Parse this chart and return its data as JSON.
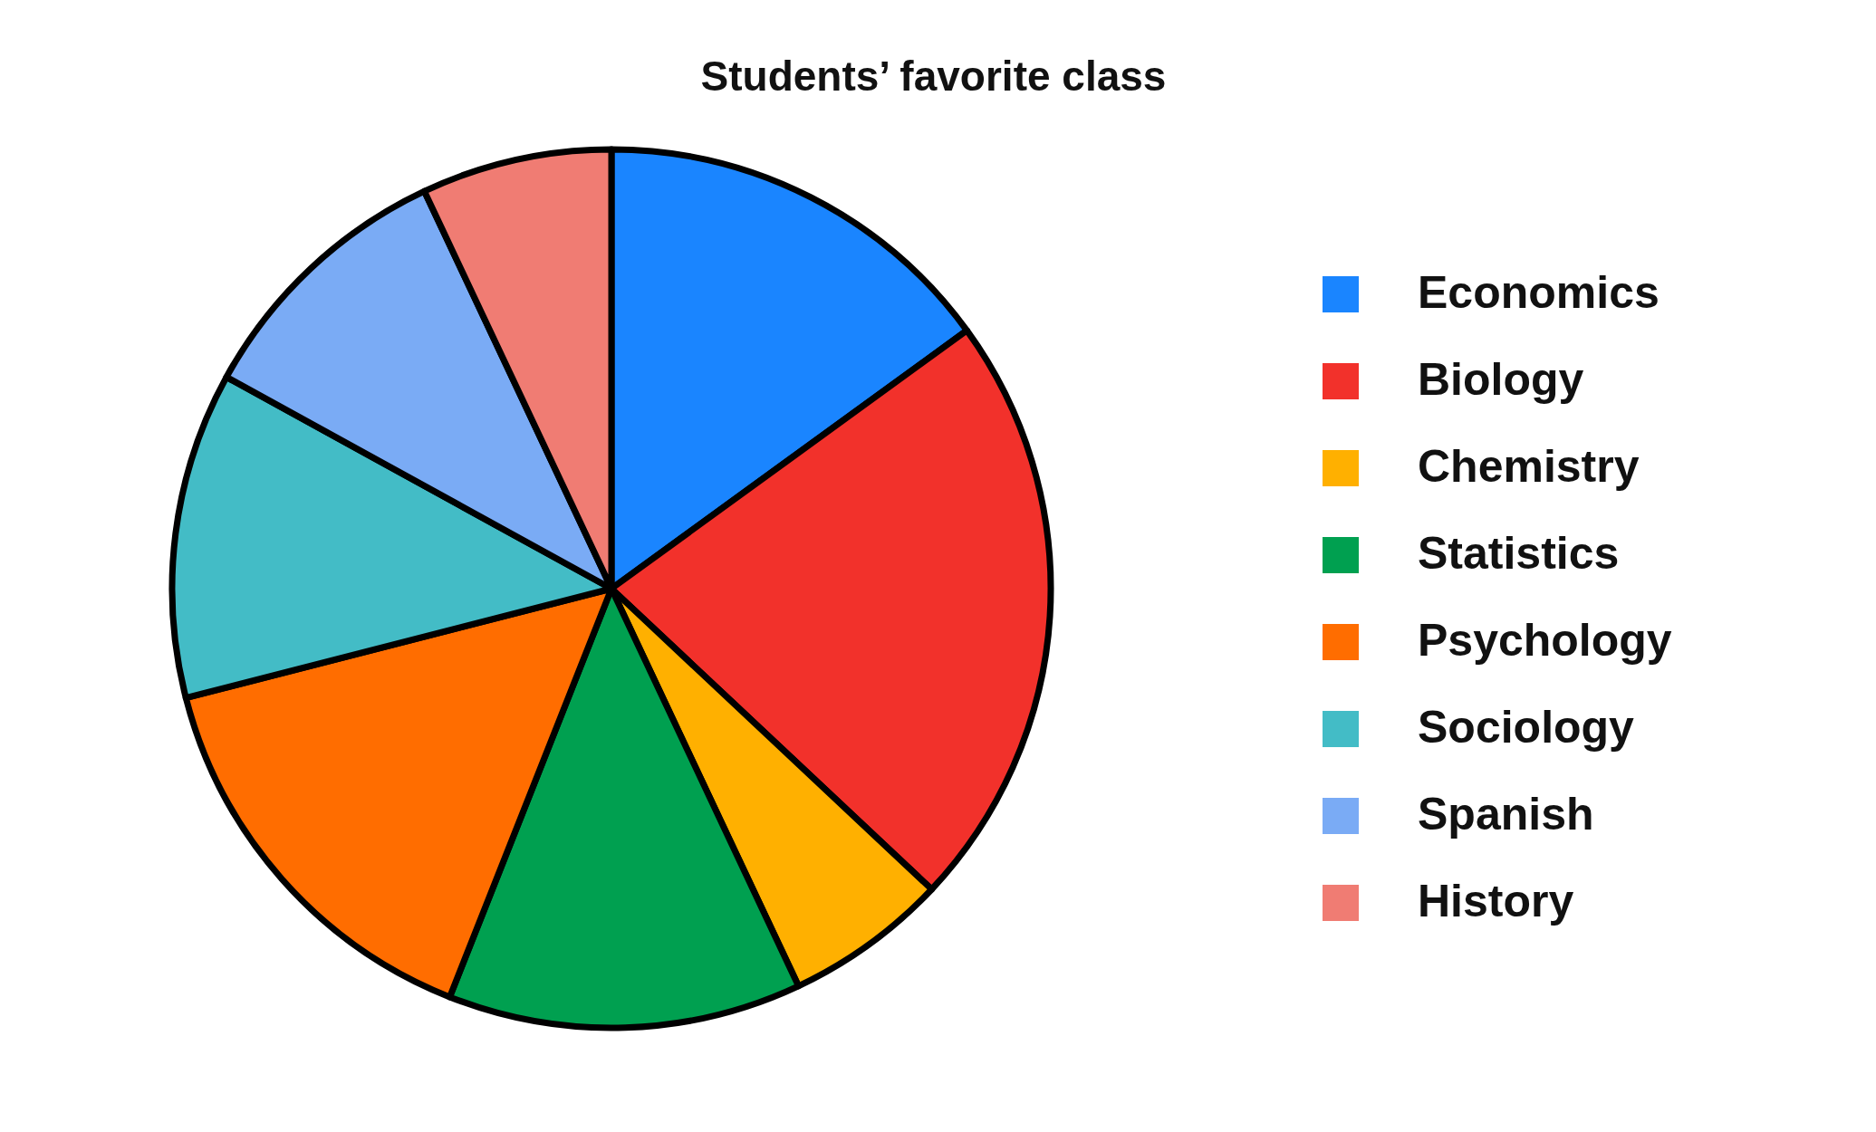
{
  "chart_data": {
    "type": "pie",
    "title": "Students’ favorite class",
    "categories": [
      "Economics",
      "Biology",
      "Chemistry",
      "Statistics",
      "Psychology",
      "Sociology",
      "Spanish",
      "History"
    ],
    "values": [
      15,
      22,
      6,
      13,
      15,
      12,
      10,
      7
    ],
    "colors": [
      "#1a85ff",
      "#f2312b",
      "#ffb000",
      "#00a050",
      "#ff6d00",
      "#43bcc6",
      "#7aabf5",
      "#f07c73"
    ],
    "legend": "right"
  }
}
